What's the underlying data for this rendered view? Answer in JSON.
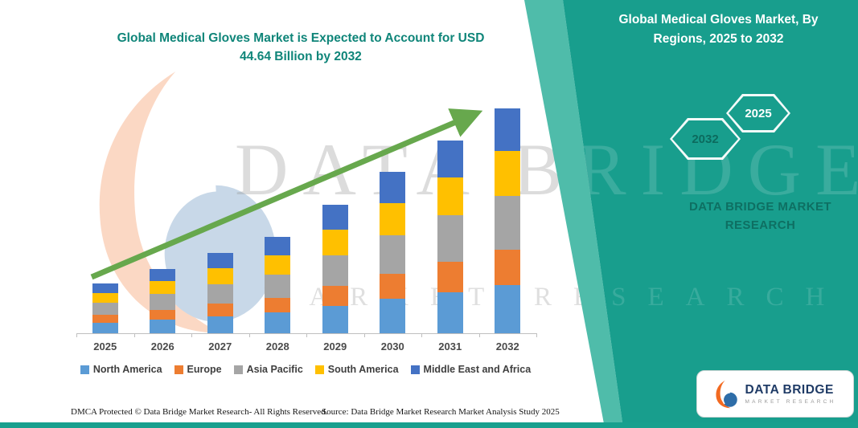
{
  "header": {
    "title_line1": "Global Medical Gloves Market is Expected to Account for USD",
    "title_line2": "44.64 Billion by 2032"
  },
  "right_panel": {
    "title": "Global Medical Gloves Market, By Regions, 2025 to 2032",
    "hexagon_back_label": "2032",
    "hexagon_front_label": "2025",
    "brand_line1": "DATA BRIDGE MARKET",
    "brand_line2": "RESEARCH",
    "panel_color": "#189E8D"
  },
  "watermark": {
    "line1": "DATA BRIDGE",
    "line2": "MARKET RESEARCH"
  },
  "logo_card": {
    "brand": "DATA BRIDGE",
    "sub_brand": "MARKET RESEARCH"
  },
  "footer": {
    "dmca_text": "DMCA Protected © Data Bridge Market Research-  All Rights Reserved.",
    "source_text": "Source: Data Bridge Market Research  Market Analysis Study 2025"
  },
  "accent_colors": {
    "teal": "#189E8D",
    "arrow_green": "#67A84D"
  },
  "chart_data": {
    "type": "bar",
    "stacked": true,
    "title": "Global Medical Gloves Market is Expected to Account for USD 44.64 Billion by 2032",
    "unit": "USD Billion",
    "categories": [
      "2025",
      "2026",
      "2027",
      "2028",
      "2029",
      "2030",
      "2031",
      "2032"
    ],
    "series": [
      {
        "name": "North America",
        "color": "#5B9BD5",
        "values": [
          2.1,
          2.7,
          3.4,
          4.1,
          5.4,
          6.8,
          8.2,
          9.6
        ]
      },
      {
        "name": "Europe",
        "color": "#ED7D31",
        "values": [
          1.55,
          2.0,
          2.5,
          3.0,
          4.0,
          5.0,
          6.0,
          7.0
        ]
      },
      {
        "name": "Asia Pacific",
        "color": "#A5A5A5",
        "values": [
          2.35,
          3.1,
          3.85,
          4.6,
          6.1,
          7.7,
          9.2,
          10.64
        ]
      },
      {
        "name": "South America",
        "color": "#FFC000",
        "values": [
          2.0,
          2.55,
          3.2,
          3.85,
          5.1,
          6.4,
          7.6,
          8.9
        ]
      },
      {
        "name": "Middle East and Africa",
        "color": "#4472C4",
        "values": [
          1.9,
          2.45,
          3.05,
          3.65,
          4.9,
          6.1,
          7.3,
          8.5
        ]
      }
    ],
    "totals": [
      9.9,
      12.8,
      16.0,
      19.2,
      25.5,
      32.0,
      38.3,
      44.64
    ],
    "ylim": [
      0,
      46
    ],
    "gridlines": false,
    "legend_position": "bottom",
    "trend_arrow": true
  }
}
